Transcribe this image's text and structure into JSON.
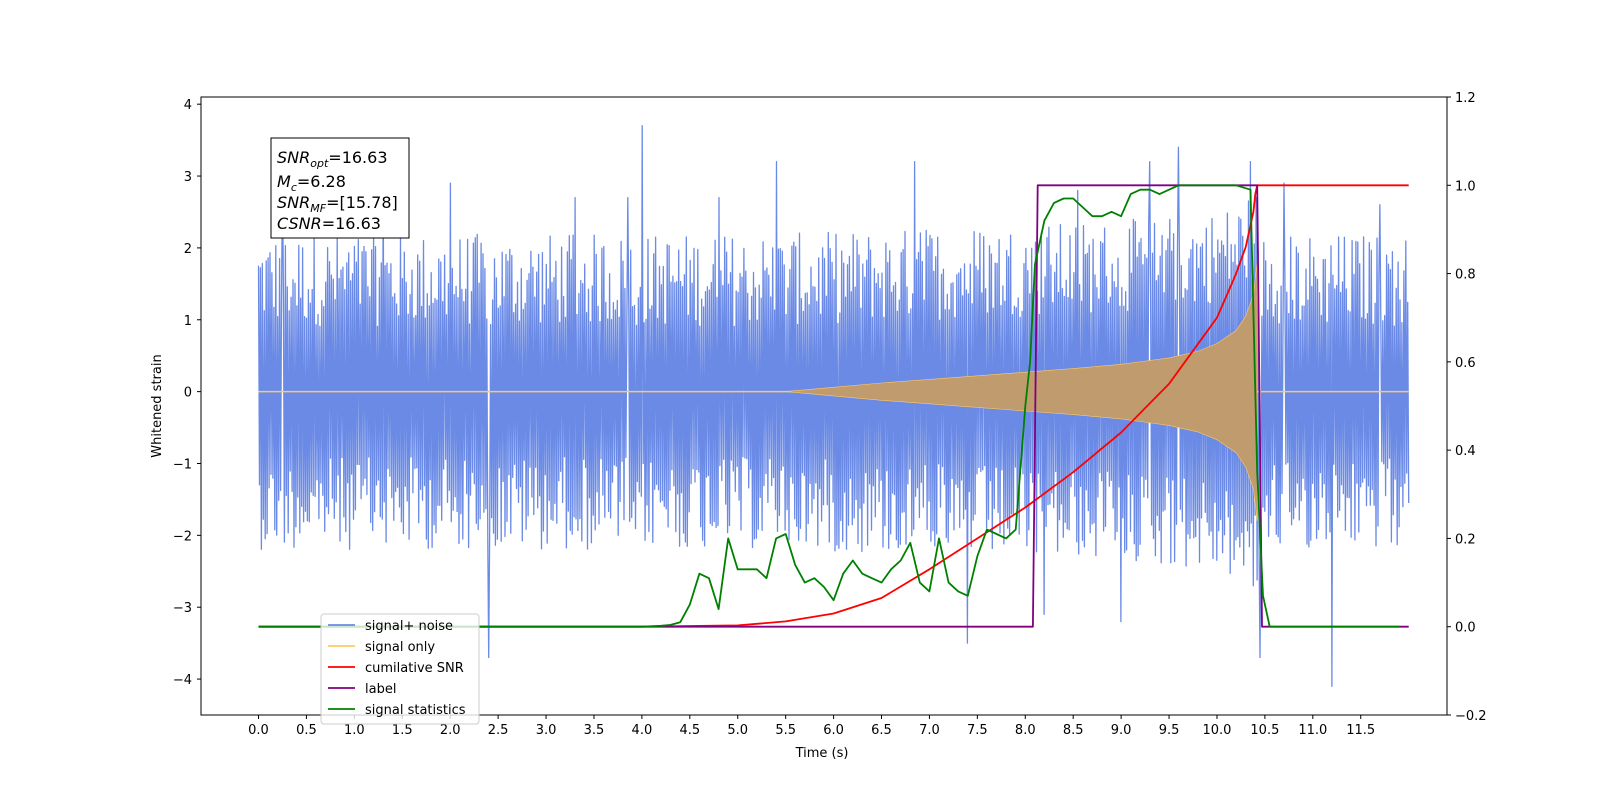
{
  "chart_data": {
    "type": "line",
    "title": "",
    "xlabel": "Time (s)",
    "ylabel": "Whitened strain",
    "xlim": [
      -0.6,
      12.4
    ],
    "ylim": [
      -4.5,
      4.1
    ],
    "y2lim": [
      -0.2,
      1.2
    ],
    "x_ticks": [
      0.0,
      0.5,
      1.0,
      1.5,
      2.0,
      2.5,
      3.0,
      3.5,
      4.0,
      4.5,
      5.0,
      5.5,
      6.0,
      6.5,
      7.0,
      7.5,
      8.0,
      8.5,
      9.0,
      9.5,
      10.0,
      10.5,
      11.0,
      11.5
    ],
    "x_tick_labels": [
      "0.0",
      "0.5",
      "1.0",
      "1.5",
      "2.0",
      "2.5",
      "3.0",
      "3.5",
      "4.0",
      "4.5",
      "5.0",
      "5.5",
      "6.0",
      "6.5",
      "7.0",
      "7.5",
      "8.0",
      "8.5",
      "9.0",
      "9.5",
      "10.0",
      "10.5",
      "11.0",
      "11.5"
    ],
    "y_ticks": [
      -4,
      -3,
      -2,
      -1,
      0,
      1,
      2,
      3,
      4
    ],
    "y_tick_labels": [
      "−4",
      "−3",
      "−2",
      "−1",
      "0",
      "1",
      "2",
      "3",
      "4"
    ],
    "y2_ticks": [
      -0.2,
      0.0,
      0.2,
      0.4,
      0.6,
      0.8,
      1.0,
      1.2
    ],
    "y2_tick_labels": [
      "−0.2",
      "0.0",
      "0.2",
      "0.4",
      "0.6",
      "0.8",
      "1.0",
      "1.2"
    ],
    "grid": false,
    "legend_position": "lower-left",
    "legend": [
      {
        "label": "signal+ noise",
        "color": "#6a8ae6"
      },
      {
        "label": "signal only",
        "color": "#ffc966"
      },
      {
        "label": "cumilative SNR",
        "color": "#ff0000"
      },
      {
        "label": "label",
        "color": "#800080"
      },
      {
        "label": "signal statistics",
        "color": "#008000"
      }
    ],
    "annotation": {
      "snr_opt": {
        "name": "SNR",
        "sub": "opt",
        "value": "=16.63"
      },
      "mc": {
        "name": "M",
        "sub": "c",
        "value": "=6.28"
      },
      "snr_mf": {
        "name": "SNR",
        "sub": "MF",
        "value": "=[15.78]"
      },
      "csnr": {
        "name": "CSNR",
        "value": "=16.63"
      }
    },
    "series": [
      {
        "name": "signal+ noise",
        "axis": "left",
        "color": "#6a8ae6",
        "x_range": [
          0.0,
          12.0
        ],
        "samples": 1200,
        "noise_envelope": 2.0,
        "peaks": [
          [
            0.25,
            3.0
          ],
          [
            1.3,
            3.0
          ],
          [
            2.0,
            2.9
          ],
          [
            2.4,
            -3.7
          ],
          [
            3.3,
            2.7
          ],
          [
            3.85,
            2.7
          ],
          [
            4.0,
            3.7
          ],
          [
            4.8,
            2.7
          ],
          [
            5.4,
            3.2
          ],
          [
            6.85,
            3.2
          ],
          [
            7.4,
            -3.5
          ],
          [
            8.2,
            -3.1
          ],
          [
            8.55,
            2.8
          ],
          [
            9.0,
            -3.2
          ],
          [
            9.3,
            3.2
          ],
          [
            9.6,
            3.4
          ],
          [
            10.35,
            3.2
          ],
          [
            10.45,
            -3.7
          ],
          [
            10.7,
            2.9
          ],
          [
            11.2,
            -4.1
          ],
          [
            11.7,
            2.6
          ]
        ],
        "chirp_start": 5.5,
        "chirp_end": 10.42,
        "chirp_peak": 2.0
      },
      {
        "name": "signal only",
        "axis": "left",
        "color": "#ffc966",
        "fill_color": "#bf9b6e",
        "x": [
          5.5,
          6.0,
          6.5,
          7.0,
          7.5,
          8.0,
          8.5,
          9.0,
          9.5,
          9.8,
          10.0,
          10.2,
          10.3,
          10.38,
          10.42
        ],
        "envelope": [
          0.0,
          0.06,
          0.12,
          0.17,
          0.22,
          0.27,
          0.32,
          0.38,
          0.47,
          0.56,
          0.67,
          0.85,
          1.05,
          1.35,
          1.8
        ]
      },
      {
        "name": "cumilative SNR",
        "axis": "right",
        "color": "#ff0000",
        "x": [
          0.0,
          4.0,
          5.0,
          5.5,
          6.0,
          6.5,
          7.0,
          7.5,
          8.0,
          8.5,
          9.0,
          9.5,
          10.0,
          10.2,
          10.3,
          10.38,
          10.4,
          10.42,
          12.0
        ],
        "y": [
          0.0,
          0.0,
          0.003,
          0.012,
          0.03,
          0.065,
          0.13,
          0.2,
          0.27,
          0.35,
          0.44,
          0.55,
          0.7,
          0.8,
          0.86,
          0.94,
          0.98,
          1.0,
          1.0
        ]
      },
      {
        "name": "label",
        "axis": "right",
        "color": "#800080",
        "x": [
          0.0,
          4.45,
          8.08,
          8.13,
          9.55,
          10.42,
          10.47,
          12.0
        ],
        "y": [
          0.0,
          0.0,
          0.0,
          1.0,
          1.0,
          1.0,
          0.0,
          0.0
        ]
      },
      {
        "name": "signal statistics",
        "axis": "right",
        "color": "#008000",
        "x": [
          0.0,
          4.0,
          4.2,
          4.3,
          4.4,
          4.5,
          4.6,
          4.7,
          4.8,
          4.9,
          5.0,
          5.1,
          5.2,
          5.3,
          5.4,
          5.5,
          5.6,
          5.7,
          5.8,
          5.9,
          6.0,
          6.1,
          6.2,
          6.3,
          6.4,
          6.5,
          6.6,
          6.7,
          6.8,
          6.9,
          7.0,
          7.1,
          7.2,
          7.3,
          7.4,
          7.5,
          7.6,
          7.7,
          7.8,
          7.9,
          8.0,
          8.05,
          8.1,
          8.2,
          8.3,
          8.4,
          8.5,
          8.6,
          8.7,
          8.8,
          8.9,
          9.0,
          9.1,
          9.2,
          9.3,
          9.4,
          9.5,
          9.6,
          9.8,
          10.0,
          10.2,
          10.35,
          10.42,
          10.48,
          10.55,
          11.9
        ],
        "y": [
          0.0,
          0.0,
          0.002,
          0.004,
          0.01,
          0.05,
          0.12,
          0.11,
          0.04,
          0.2,
          0.13,
          0.13,
          0.13,
          0.11,
          0.2,
          0.21,
          0.14,
          0.1,
          0.11,
          0.09,
          0.06,
          0.12,
          0.15,
          0.12,
          0.11,
          0.1,
          0.13,
          0.15,
          0.19,
          0.1,
          0.08,
          0.2,
          0.1,
          0.08,
          0.07,
          0.16,
          0.22,
          0.21,
          0.2,
          0.22,
          0.5,
          0.6,
          0.82,
          0.92,
          0.96,
          0.97,
          0.97,
          0.95,
          0.93,
          0.93,
          0.94,
          0.93,
          0.98,
          0.99,
          0.99,
          0.98,
          0.99,
          1.0,
          1.0,
          1.0,
          1.0,
          0.99,
          0.35,
          0.07,
          0.0,
          0.0
        ]
      }
    ]
  }
}
